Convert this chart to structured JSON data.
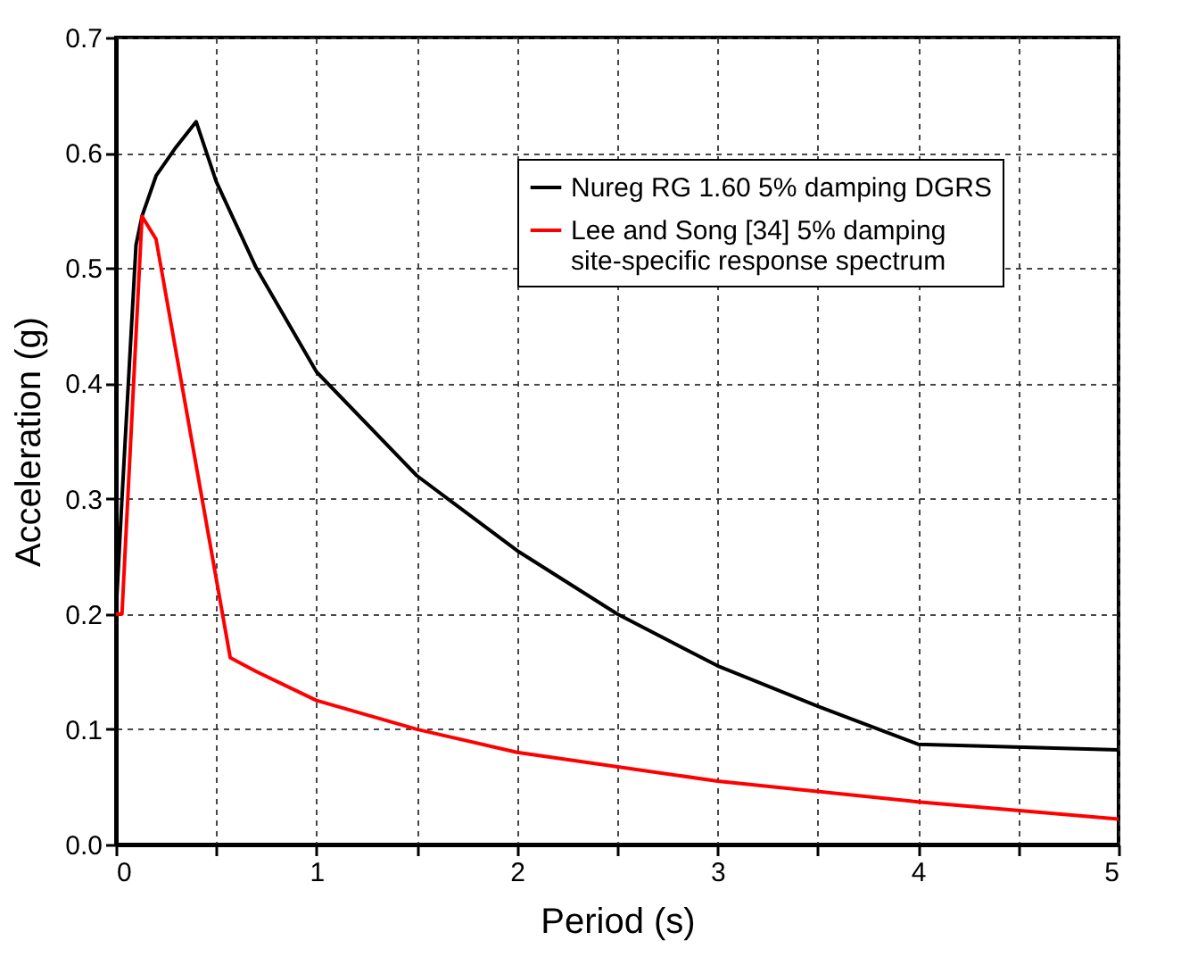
{
  "chart_data": {
    "type": "line",
    "xlabel": "Period (s)",
    "ylabel": "Acceleration (g)",
    "xlim": [
      0,
      5
    ],
    "ylim": [
      0,
      0.7
    ],
    "xticks": [
      0,
      {
        "value": 0.5,
        "label": null
      },
      1,
      {
        "value": 1.5,
        "label": null
      },
      2,
      {
        "value": 2.5,
        "label": null
      },
      3,
      {
        "value": 3.5,
        "label": null
      },
      4,
      {
        "value": 4.5,
        "label": null
      },
      5
    ],
    "yticks": [
      {
        "value": 0,
        "label": "0.0"
      },
      0.1,
      0.2,
      0.3,
      0.4,
      0.5,
      0.6,
      0.7
    ],
    "grid": true,
    "legend": "top right",
    "marker": "none",
    "line_style": "solid",
    "series": [
      {
        "name": "Nureg RG 1.60 5% damping DGRS",
        "color": "#000000",
        "x": [
          0,
          0.03,
          0.1,
          0.13,
          0.2,
          0.3,
          0.4,
          0.5,
          0.7,
          1.0,
          1.5,
          2.0,
          2.5,
          3.0,
          3.5,
          4.0,
          5.0
        ],
        "values": [
          0.2,
          0.3,
          0.52,
          0.545,
          0.58,
          0.605,
          0.627,
          0.575,
          0.5,
          0.41,
          0.32,
          0.255,
          0.2,
          0.155,
          0.12,
          0.087,
          0.082
        ]
      },
      {
        "name": "Lee and Song [34] 5% damping\nsite-specific response spectrum",
        "color": "#ff0000",
        "x": [
          0,
          0.03,
          0.13,
          0.2,
          0.57,
          0.7,
          1.0,
          1.5,
          2.0,
          3.0,
          4.0,
          5.0
        ],
        "values": [
          0.2,
          0.2,
          0.545,
          0.525,
          0.162,
          0.15,
          0.125,
          0.1,
          0.08,
          0.055,
          0.037,
          0.022
        ]
      }
    ]
  }
}
